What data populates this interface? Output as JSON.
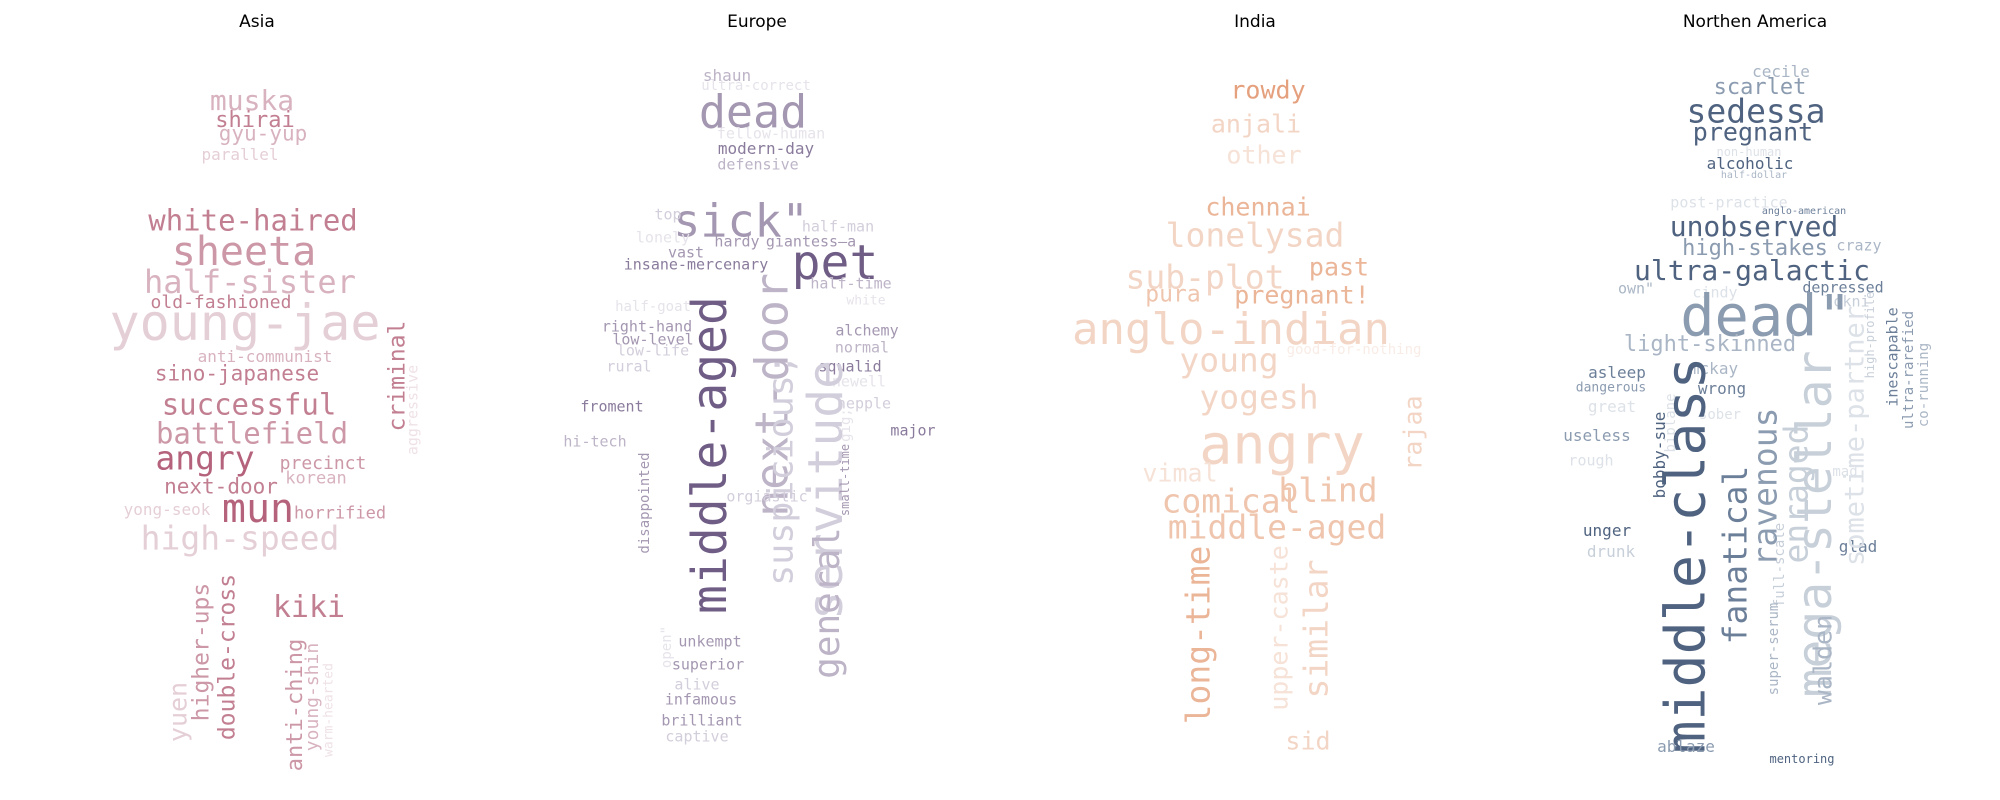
{
  "panels": [
    {
      "title": "Asia",
      "palette": [
        "#b5637c",
        "#c27f92",
        "#cc97a6",
        "#d8b3bf",
        "#e5cfd6",
        "#efe2e6"
      ],
      "words": [
        "young-jae",
        "sheeta",
        "half-sister",
        "white-haired",
        "old-fashioned",
        "muska",
        "shirai",
        "gyu-yup",
        "parallel",
        "anti-communist",
        "sino-japanese",
        "successful",
        "battlefield",
        "angry",
        "precinct",
        "korean",
        "next-door",
        "mun",
        "horrified",
        "yong-seok",
        "high-speed",
        "criminal",
        "aggressive",
        "kiki",
        "higher-ups",
        "double-cross",
        "yuen",
        "anti-ching",
        "young-shin",
        "warm-hearted"
      ]
    },
    {
      "title": "Europe",
      "palette": [
        "#6f5d85",
        "#8a7b9c",
        "#a497b1",
        "#bdb4c7",
        "#d3cedb",
        "#e6e3ea"
      ],
      "words": [
        "dead",
        "shaun",
        "ultra-correct",
        "fellow-human",
        "modern-day",
        "defensive",
        "sick\"",
        "pet",
        "top",
        "half-man",
        "lonely",
        "hardy",
        "giantess—a",
        "vast",
        "insane-mercenary",
        "half-time",
        "white",
        "half-goat",
        "right-hand",
        "alchemy",
        "low-level",
        "low-life",
        "normal",
        "rural",
        "squalid",
        "newell",
        "froment",
        "hepple",
        "major",
        "hi-tech",
        "middle-aged",
        "next-door",
        "suspicious;",
        "servitude",
        "general",
        "orgiastic",
        "small-time",
        "gig;",
        "disappointed",
        "open\"",
        "unkempt",
        "superior",
        "alive",
        "infamous",
        "brilliant",
        "captive"
      ]
    },
    {
      "title": "India",
      "palette": [
        "#e5a07e",
        "#ebb598",
        "#efc5ae",
        "#f3d5c5",
        "#f6e2d7",
        "#f9ece6"
      ],
      "words": [
        "rowdy",
        "anjali",
        "other",
        "chennai",
        "lonelysad",
        "sub-plot",
        "past",
        "pura",
        "pregnant!",
        "anglo-indian",
        "good-for-nothing",
        "young",
        "yogesh",
        "rajaa",
        "angry",
        "vimal",
        "comical",
        "blind",
        "middle-aged",
        "long-time",
        "upper-caste",
        "similar",
        "sid"
      ]
    },
    {
      "title": "Northen America",
      "palette": [
        "#4f6380",
        "#6c7f99",
        "#8b9bb0",
        "#aab6c5",
        "#c7cfd9",
        "#dde2e8"
      ],
      "words": [
        "cecile",
        "scarlet",
        "sedessa",
        "pregnant",
        "non-human",
        "alcoholic",
        "half-dollar",
        "post-practice",
        "anglo-american",
        "unobserved",
        "high-stakes",
        "crazy",
        "ultra-galactic",
        "own\"",
        "cindy",
        "depressed",
        "lokni",
        "dead\"",
        "light-skinned",
        "high-profile",
        "inescapable",
        "ultra-rarefied",
        "co-running",
        "asleep",
        "mckay",
        "dangerous",
        "wrong",
        "great",
        "biplane",
        "sober",
        "useless",
        "mad",
        "bobby-sue",
        "rough",
        "unger",
        "drunk",
        "glad",
        "full-scale",
        "super-serum",
        "middle-class",
        "fanatical",
        "ravenous",
        "enraged",
        "mega-stellar",
        "sometime-partner",
        "walden",
        "ablaze",
        "mentoring"
      ]
    }
  ]
}
